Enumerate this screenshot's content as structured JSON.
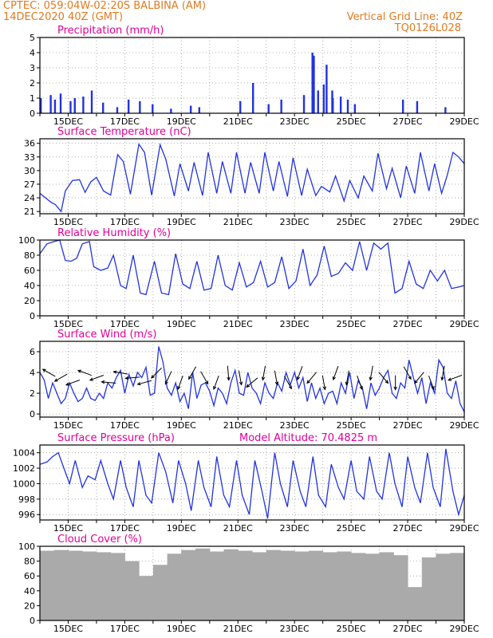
{
  "header": {
    "line1_left": "CPTEC:   059:04W-02:20S   BALBINA (AM)",
    "line2_left": "14DEC2020 40Z (GMT)",
    "line1_right": "Vertical Grid Line: 40Z",
    "line2_right": "TQ0126L028",
    "color": "#e07a1f"
  },
  "colors": {
    "title": "#e0009a",
    "series": "#2233dd",
    "bars": "#2233dd",
    "cloud": "#aaaaaa",
    "axis": "#000000",
    "grid": "#999999"
  },
  "x_tick_labels": [
    "15DEC",
    "17DEC",
    "19DEC",
    "21DEC",
    "23DEC",
    "25DEC",
    "27DEC",
    "29DEC"
  ],
  "chart_data": [
    {
      "type": "bar",
      "title": "Precipitation (mm/h)",
      "ylim": [
        0,
        5
      ],
      "yticks": [
        "0",
        "1",
        "2",
        "3",
        "4",
        "5"
      ],
      "x_range_days": [
        0,
        15
      ],
      "x": [
        0.0,
        0.35,
        0.5,
        0.7,
        1.05,
        1.2,
        1.5,
        1.8,
        2.2,
        2.7,
        3.1,
        3.5,
        3.95,
        4.6,
        5.3,
        5.6,
        7.05,
        7.5,
        8.05,
        8.5,
        9.3,
        9.6,
        9.65,
        9.8,
        10.0,
        10.1,
        10.3,
        10.32,
        10.6,
        10.85,
        11.1,
        12.8,
        13.3,
        14.3
      ],
      "values": [
        1.0,
        1.2,
        0.9,
        1.3,
        0.8,
        1.0,
        1.1,
        1.5,
        0.7,
        0.4,
        0.9,
        0.8,
        0.6,
        0.3,
        0.5,
        0.4,
        0.8,
        2.0,
        0.6,
        0.9,
        1.2,
        4.0,
        3.8,
        1.5,
        1.9,
        3.2,
        1.5,
        1.0,
        1.1,
        0.9,
        0.6,
        0.9,
        0.8,
        0.4
      ]
    },
    {
      "type": "line",
      "title": "Surface Temperature (nC)",
      "ylim": [
        20.5,
        37
      ],
      "ytick_values": [
        21,
        24,
        27,
        30,
        33,
        36
      ],
      "yticks": [
        "21",
        "24",
        "27",
        "30",
        "33",
        "36"
      ],
      "x": [
        0.0,
        0.2,
        0.4,
        0.55,
        0.75,
        0.9,
        1.15,
        1.4,
        1.6,
        1.8,
        2.0,
        2.25,
        2.5,
        2.75,
        2.95,
        3.2,
        3.5,
        3.7,
        3.95,
        4.25,
        4.45,
        4.75,
        4.95,
        5.25,
        5.45,
        5.75,
        5.95,
        6.25,
        6.45,
        6.75,
        6.95,
        7.25,
        7.45,
        7.75,
        7.95,
        8.25,
        8.45,
        8.75,
        8.95,
        9.25,
        9.45,
        9.75,
        9.95,
        10.25,
        10.45,
        10.75,
        10.95,
        11.25,
        11.45,
        11.75,
        11.95,
        12.25,
        12.45,
        12.75,
        12.95,
        13.25,
        13.45,
        13.75,
        13.95,
        14.2,
        14.4,
        14.6,
        14.8,
        15.0
      ],
      "values": [
        25.0,
        24.0,
        23.0,
        22.5,
        21.0,
        25.5,
        27.8,
        28.0,
        25.2,
        27.5,
        28.5,
        25.5,
        24.6,
        33.5,
        32.0,
        24.8,
        35.8,
        34.0,
        24.6,
        35.7,
        32.5,
        24.4,
        31.5,
        25.5,
        31.8,
        24.5,
        34.0,
        25.0,
        32.0,
        25.0,
        34.0,
        25.0,
        31.8,
        25.0,
        34.0,
        25.5,
        32.0,
        24.3,
        32.8,
        24.5,
        30.3,
        24.5,
        26.5,
        25.3,
        28.8,
        23.3,
        27.8,
        24.0,
        28.8,
        25.5,
        33.8,
        26.0,
        30.5,
        24.0,
        31.0,
        25.0,
        34.0,
        25.5,
        31.5,
        25.0,
        29.0,
        34.0,
        33.0,
        31.5
      ]
    },
    {
      "type": "line",
      "title": "Relative Humidity (%)",
      "ylim": [
        0,
        100
      ],
      "ytick_values": [
        0,
        20,
        40,
        60,
        80,
        100
      ],
      "yticks": [
        "0",
        "20",
        "40",
        "60",
        "80",
        "100"
      ],
      "x": [
        0.0,
        0.25,
        0.5,
        0.7,
        0.9,
        1.1,
        1.3,
        1.5,
        1.75,
        1.9,
        2.15,
        2.4,
        2.6,
        2.85,
        3.05,
        3.3,
        3.55,
        3.75,
        4.05,
        4.3,
        4.55,
        4.8,
        5.05,
        5.3,
        5.55,
        5.8,
        6.05,
        6.3,
        6.55,
        6.8,
        7.05,
        7.3,
        7.55,
        7.8,
        8.05,
        8.3,
        8.55,
        8.8,
        9.05,
        9.3,
        9.55,
        9.8,
        10.05,
        10.3,
        10.55,
        10.8,
        11.05,
        11.3,
        11.55,
        11.8,
        12.05,
        12.3,
        12.55,
        12.8,
        13.05,
        13.3,
        13.55,
        13.8,
        14.05,
        14.3,
        14.55,
        14.8,
        15.0
      ],
      "values": [
        82,
        95,
        98,
        100,
        73,
        72,
        76,
        95,
        98,
        65,
        60,
        63,
        80,
        40,
        36,
        80,
        30,
        28,
        72,
        30,
        28,
        82,
        42,
        36,
        72,
        34,
        36,
        80,
        40,
        34,
        70,
        38,
        44,
        72,
        38,
        44,
        78,
        36,
        46,
        88,
        40,
        54,
        92,
        52,
        56,
        70,
        60,
        98,
        60,
        96,
        88,
        96,
        30,
        36,
        72,
        42,
        36,
        60,
        46,
        60,
        36,
        38,
        40
      ]
    },
    {
      "type": "line",
      "title": "Surface Wind (m/s)",
      "ylim": [
        -0.3,
        7
      ],
      "ytick_values": [
        0,
        2,
        4,
        6
      ],
      "yticks": [
        "0",
        "2",
        "4",
        "6"
      ],
      "x": [
        0.0,
        0.15,
        0.3,
        0.45,
        0.6,
        0.75,
        0.9,
        1.05,
        1.2,
        1.35,
        1.5,
        1.65,
        1.8,
        1.95,
        2.1,
        2.25,
        2.4,
        2.55,
        2.7,
        2.85,
        3.0,
        3.15,
        3.3,
        3.45,
        3.6,
        3.75,
        3.9,
        4.05,
        4.2,
        4.35,
        4.5,
        4.65,
        4.8,
        4.95,
        5.1,
        5.25,
        5.4,
        5.55,
        5.7,
        5.85,
        6.0,
        6.15,
        6.3,
        6.45,
        6.6,
        6.75,
        6.9,
        7.05,
        7.2,
        7.35,
        7.5,
        7.65,
        7.8,
        7.95,
        8.1,
        8.25,
        8.4,
        8.55,
        8.7,
        8.85,
        9.0,
        9.15,
        9.3,
        9.45,
        9.6,
        9.75,
        9.9,
        10.05,
        10.2,
        10.35,
        10.5,
        10.65,
        10.8,
        10.95,
        11.1,
        11.25,
        11.4,
        11.55,
        11.7,
        11.85,
        12.0,
        12.15,
        12.3,
        12.45,
        12.6,
        12.75,
        12.9,
        13.05,
        13.2,
        13.35,
        13.5,
        13.65,
        13.8,
        13.95,
        14.1,
        14.25,
        14.4,
        14.55,
        14.7,
        14.85,
        15.0
      ],
      "values": [
        4.0,
        3.3,
        1.5,
        3.0,
        2.0,
        1.0,
        1.5,
        3.0,
        2.0,
        1.2,
        1.5,
        2.5,
        1.5,
        1.3,
        2.0,
        1.5,
        3.0,
        2.5,
        3.5,
        4.2,
        2.0,
        3.8,
        2.7,
        4.0,
        3.5,
        4.5,
        1.8,
        2.0,
        6.5,
        5.0,
        2.5,
        1.8,
        3.0,
        1.2,
        2.0,
        0.5,
        4.0,
        1.5,
        2.8,
        3.0,
        2.2,
        0.8,
        2.5,
        2.0,
        1.0,
        3.0,
        4.2,
        2.0,
        1.8,
        4.0,
        2.5,
        2.0,
        1.0,
        3.0,
        2.0,
        1.5,
        3.0,
        2.2,
        4.0,
        2.8,
        4.0,
        2.5,
        3.5,
        1.2,
        3.0,
        1.5,
        2.5,
        1.0,
        2.0,
        2.2,
        1.0,
        3.0,
        2.0,
        4.0,
        1.5,
        3.2,
        2.5,
        0.5,
        3.0,
        1.8,
        2.5,
        3.5,
        4.2,
        2.0,
        1.5,
        3.0,
        2.5,
        5.2,
        3.5,
        2.0,
        3.5,
        1.0,
        3.0,
        2.0,
        5.2,
        4.5,
        2.0,
        1.5,
        3.2,
        1.0,
        0.2
      ],
      "wind_arrow_angles_deg": [
        150,
        210,
        200,
        160,
        200,
        175,
        170,
        185,
        195,
        225,
        245,
        250,
        240,
        300,
        250,
        275,
        280,
        220,
        260,
        280,
        300,
        250,
        230,
        280,
        250,
        260,
        290,
        260,
        310,
        270,
        300,
        230,
        290,
        260,
        200
      ]
    },
    {
      "type": "line",
      "title": "Surface Pressure (hPa)",
      "annotation": "Model Altitude: 70.4825 m",
      "ylim": [
        995.3,
        1005
      ],
      "ytick_values": [
        996,
        998,
        1000,
        1002,
        1004
      ],
      "yticks": [
        "996",
        "998",
        "1000",
        "1002",
        "1004"
      ],
      "x": [
        0.0,
        0.25,
        0.45,
        0.65,
        0.85,
        1.05,
        1.25,
        1.5,
        1.7,
        1.95,
        2.15,
        2.4,
        2.6,
        2.85,
        3.05,
        3.3,
        3.5,
        3.75,
        3.95,
        4.2,
        4.45,
        4.7,
        4.9,
        5.15,
        5.35,
        5.6,
        5.8,
        6.05,
        6.25,
        6.5,
        6.7,
        6.95,
        7.15,
        7.4,
        7.6,
        7.85,
        8.05,
        8.3,
        8.5,
        8.75,
        8.95,
        9.2,
        9.4,
        9.65,
        9.85,
        10.1,
        10.3,
        10.55,
        10.75,
        11.0,
        11.2,
        11.45,
        11.65,
        11.9,
        12.1,
        12.35,
        12.55,
        12.8,
        13.0,
        13.25,
        13.45,
        13.7,
        13.9,
        14.15,
        14.35,
        14.6,
        14.8,
        15.0
      ],
      "values": [
        1002.5,
        1002.8,
        1003.5,
        1004.0,
        1002.0,
        1000.0,
        1003.0,
        999.5,
        1001.0,
        1000.5,
        1003.0,
        1000.0,
        998.0,
        1003.0,
        999.5,
        997.0,
        1003.0,
        998.5,
        997.5,
        1004.0,
        1001.5,
        997.5,
        1003.0,
        1000.0,
        996.5,
        1003.0,
        999.5,
        997.0,
        1003.5,
        998.5,
        997.0,
        1003.0,
        998.5,
        996.0,
        1003.0,
        999.0,
        995.5,
        1004.0,
        1000.0,
        997.0,
        1003.0,
        999.0,
        997.0,
        1003.5,
        998.5,
        997.0,
        1002.5,
        999.5,
        998.0,
        1003.0,
        999.0,
        998.0,
        1003.5,
        999.0,
        998.0,
        1004.0,
        1000.0,
        997.0,
        1003.5,
        999.5,
        997.5,
        1004.0,
        999.5,
        997.0,
        1004.5,
        999.0,
        996.0,
        998.5
      ]
    },
    {
      "type": "bar",
      "title": "Cloud Cover (%)",
      "ylim": [
        0,
        100
      ],
      "ytick_values": [
        0,
        20,
        40,
        60,
        80,
        100
      ],
      "yticks": [
        "0",
        "20",
        "40",
        "60",
        "80",
        "100"
      ],
      "x_range_days": [
        0,
        15
      ],
      "x": [
        0.0,
        0.5,
        1.0,
        1.5,
        2.0,
        2.5,
        3.0,
        3.5,
        4.0,
        4.5,
        5.0,
        5.5,
        6.0,
        6.5,
        7.0,
        7.5,
        8.0,
        8.5,
        9.0,
        9.5,
        10.0,
        10.5,
        11.0,
        11.5,
        12.0,
        12.5,
        13.0,
        13.5,
        14.0,
        14.5
      ],
      "values": [
        94,
        95,
        94,
        93,
        92,
        91,
        80,
        60,
        75,
        90,
        95,
        97,
        93,
        96,
        94,
        92,
        95,
        94,
        93,
        94,
        92,
        93,
        91,
        90,
        92,
        88,
        45,
        85,
        90,
        91
      ]
    }
  ]
}
